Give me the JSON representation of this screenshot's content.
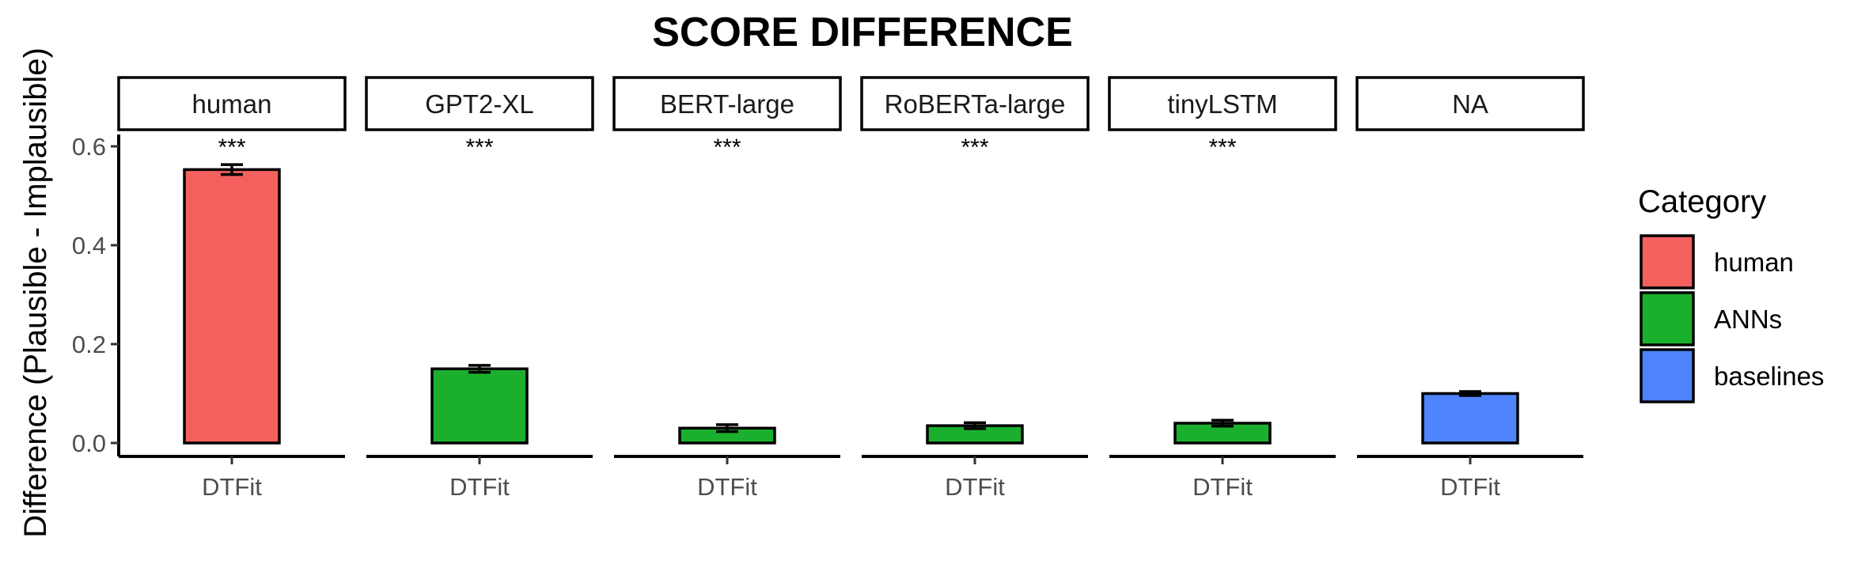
{
  "chart_data": {
    "type": "bar",
    "title": "SCORE DIFFERENCE",
    "ylabel": "Difference (Plausible - Implausible)",
    "ylim": [
      -0.02,
      0.62
    ],
    "yticks": [
      0.0,
      0.2,
      0.4,
      0.6
    ],
    "ytick_labels": [
      "0.0",
      "0.2",
      "0.4",
      "0.6"
    ],
    "facets": [
      {
        "label": "human",
        "x": "DTFit",
        "value": 0.553,
        "error": 0.01,
        "category": "human",
        "significance": "***"
      },
      {
        "label": "GPT2-XL",
        "x": "DTFit",
        "value": 0.15,
        "error": 0.007,
        "category": "ANNs",
        "significance": "***"
      },
      {
        "label": "BERT-large",
        "x": "DTFit",
        "value": 0.03,
        "error": 0.007,
        "category": "ANNs",
        "significance": "***"
      },
      {
        "label": "RoBERTa-large",
        "x": "DTFit",
        "value": 0.035,
        "error": 0.006,
        "category": "ANNs",
        "significance": "***"
      },
      {
        "label": "tinyLSTM",
        "x": "DTFit",
        "value": 0.04,
        "error": 0.006,
        "category": "ANNs",
        "significance": "***"
      },
      {
        "label": "NA",
        "x": "DTFit",
        "value": 0.1,
        "error": 0.004,
        "category": "baselines",
        "significance": ""
      }
    ],
    "legend": {
      "title": "Category",
      "placement": "right",
      "entries": [
        {
          "name": "human",
          "color": "#f3605d"
        },
        {
          "name": "ANNs",
          "color": "#1ab02e"
        },
        {
          "name": "baselines",
          "color": "#4f84fd"
        }
      ]
    },
    "grid": false
  }
}
